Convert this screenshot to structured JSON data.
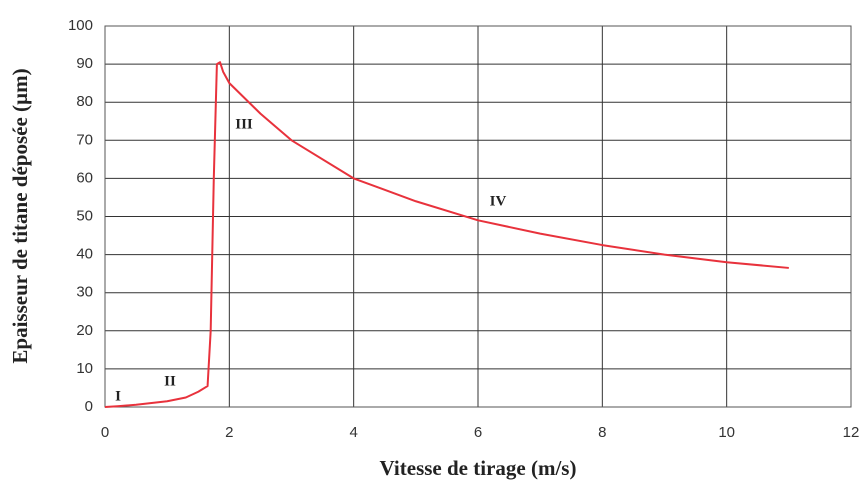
{
  "chart_data": {
    "type": "line",
    "xlabel": "Vitesse de tirage (m/s)",
    "ylabel": "Epaisseur de titane déposée (µm)",
    "annotations": [
      "I",
      "II",
      "III",
      "IV"
    ],
    "x": [
      0,
      0.2,
      0.5,
      1,
      1.3,
      1.5,
      1.65,
      1.7,
      1.75,
      1.8,
      1.85,
      1.9,
      2,
      2.5,
      3,
      4,
      5,
      6,
      7,
      8,
      9,
      10,
      11
    ],
    "series": [
      {
        "name": "Epaisseur",
        "color": "#e8323c",
        "values": [
          0,
          0.2,
          0.6,
          1.5,
          2.5,
          4,
          5.5,
          20,
          60,
          90,
          90.5,
          88,
          85,
          77,
          70,
          60,
          54,
          49,
          45.5,
          42.5,
          40,
          38,
          36.5
        ]
      }
    ],
    "xlim": [
      0,
      12
    ],
    "xticks": [
      0,
      2,
      4,
      6,
      8,
      10,
      12
    ],
    "ylim": [
      0,
      100
    ],
    "yticks": [
      0,
      10,
      20,
      30,
      40,
      50,
      60,
      70,
      80,
      90,
      100
    ],
    "grid": true
  }
}
